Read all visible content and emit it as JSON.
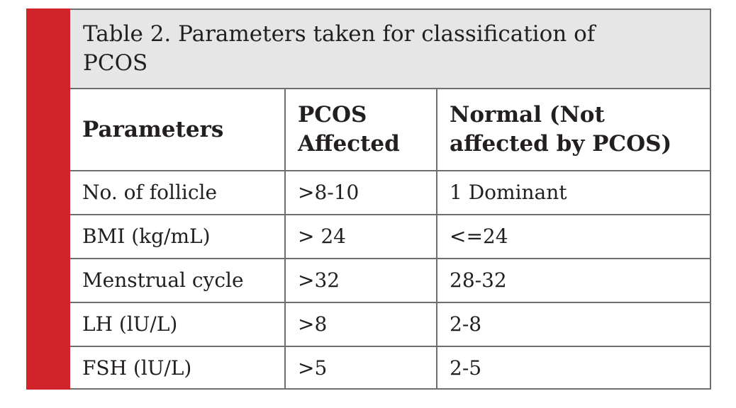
{
  "caption": {
    "line1": "Table 2. Parameters taken for classification of",
    "line2": "PCOS"
  },
  "columns": {
    "parameters": "Parameters",
    "pcos_line1": "PCOS",
    "pcos_line2": "Affected",
    "normal_line1": "Normal (Not",
    "normal_line2": "affected by PCOS)"
  },
  "rows": [
    {
      "parameter": "No. of follicle",
      "pcos": ">8-10",
      "normal": "1 Dominant"
    },
    {
      "parameter": "BMI (kg/mL)",
      "pcos": "> 24",
      "normal": "<=24"
    },
    {
      "parameter": "Menstrual cycle",
      "pcos": ">32",
      "normal": "28-32"
    },
    {
      "parameter": "LH (lU/L)",
      "pcos": ">8",
      "normal": "2-8"
    },
    {
      "parameter": "FSH (lU/L)",
      "pcos": ">5",
      "normal": "2-5"
    }
  ],
  "colors": {
    "accent_bar": "#d1232a",
    "caption_background": "#e6e6e7",
    "border": "#6d6e70",
    "text": "#231f20"
  }
}
